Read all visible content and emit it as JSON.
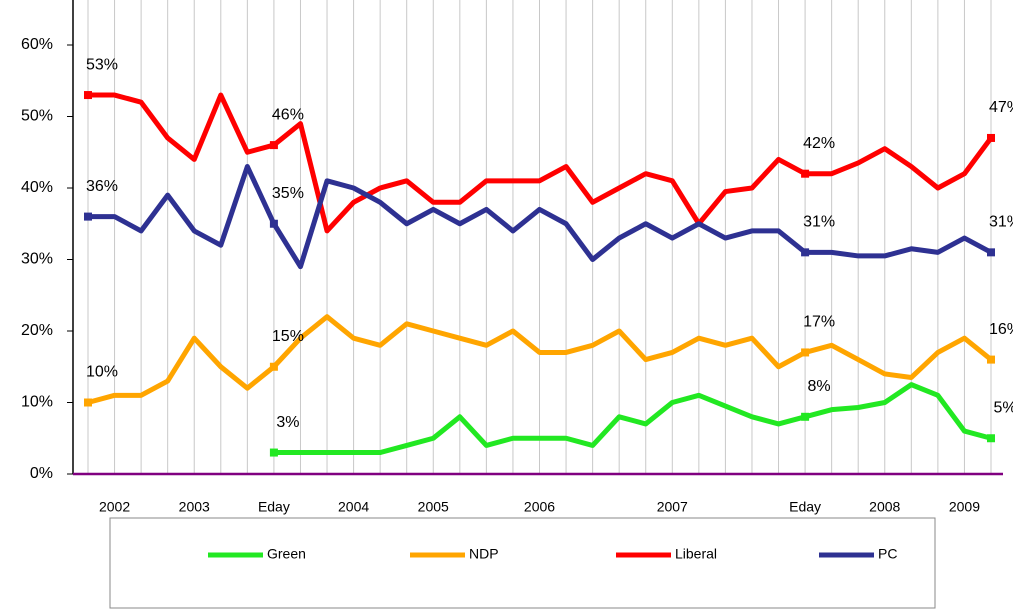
{
  "chart_data": {
    "type": "line",
    "categories": [
      null,
      "2002",
      null,
      null,
      "2003",
      null,
      null,
      "Eday",
      null,
      null,
      "2004",
      null,
      null,
      "2005",
      null,
      null,
      null,
      "2006",
      null,
      null,
      null,
      null,
      "2007",
      null,
      null,
      null,
      null,
      "Eday",
      null,
      null,
      "2008",
      null,
      null,
      "2009",
      null
    ],
    "series": [
      {
        "name": "Green",
        "color": "#22e822",
        "values": [
          null,
          null,
          null,
          null,
          null,
          null,
          null,
          3,
          3,
          3,
          3,
          3,
          4,
          5,
          8,
          4,
          5,
          5,
          5,
          4,
          8,
          7,
          10,
          11,
          9.5,
          8,
          7,
          8,
          9,
          9.3,
          10,
          12.5,
          11,
          6,
          5
        ],
        "value_labels": [
          null,
          null,
          null,
          null,
          null,
          null,
          null,
          "3%",
          null,
          null,
          null,
          null,
          null,
          null,
          null,
          null,
          null,
          null,
          null,
          null,
          null,
          null,
          null,
          null,
          null,
          null,
          null,
          "8%",
          null,
          null,
          null,
          null,
          null,
          null,
          "5%"
        ]
      },
      {
        "name": "NDP",
        "color": "#ffa500",
        "values": [
          10,
          11,
          11,
          13,
          19,
          15,
          12,
          15,
          19,
          22,
          19,
          18,
          21,
          20,
          19,
          18,
          20,
          17,
          17,
          18,
          20,
          16,
          17,
          19,
          18,
          19,
          15,
          17,
          18,
          16,
          14,
          13.5,
          17,
          19,
          16
        ],
        "value_labels": [
          "10%",
          null,
          null,
          null,
          null,
          null,
          null,
          "15%",
          null,
          null,
          null,
          null,
          null,
          null,
          null,
          null,
          null,
          null,
          null,
          null,
          null,
          null,
          null,
          null,
          null,
          null,
          null,
          "17%",
          null,
          null,
          null,
          null,
          null,
          null,
          "16%"
        ]
      },
      {
        "name": "Liberal",
        "color": "#ff0000",
        "values": [
          53,
          53,
          52,
          47,
          44,
          53,
          45,
          46,
          49,
          34,
          38,
          40,
          41,
          38,
          38,
          41,
          41,
          41,
          43,
          38,
          40,
          42,
          41,
          35,
          39.5,
          40,
          44,
          42,
          42,
          43.5,
          45.5,
          43,
          40,
          42,
          47
        ],
        "value_labels": [
          "53%",
          null,
          null,
          null,
          null,
          null,
          null,
          "46%",
          null,
          null,
          null,
          null,
          null,
          null,
          null,
          null,
          null,
          null,
          null,
          null,
          null,
          null,
          null,
          null,
          null,
          null,
          null,
          "42%",
          null,
          null,
          null,
          null,
          null,
          null,
          "47%"
        ]
      },
      {
        "name": "PC",
        "color": "#2e3192",
        "values": [
          36,
          36,
          34,
          39,
          34,
          32,
          43,
          35,
          29,
          41,
          40,
          38,
          35,
          37,
          35,
          37,
          34,
          37,
          35,
          30,
          33,
          35,
          33,
          35,
          33,
          34,
          34,
          31,
          31,
          30.5,
          30.5,
          31.5,
          31,
          33,
          31
        ],
        "value_labels": [
          "36%",
          null,
          null,
          null,
          null,
          null,
          null,
          "35%",
          null,
          null,
          null,
          null,
          null,
          null,
          null,
          null,
          null,
          null,
          null,
          null,
          null,
          null,
          null,
          null,
          null,
          null,
          null,
          "31%",
          null,
          null,
          null,
          null,
          null,
          null,
          "31%"
        ]
      }
    ],
    "ylim": [
      0,
      60
    ],
    "yticks": [
      {
        "value": 0,
        "label": "0%"
      },
      {
        "value": 10,
        "label": "10%"
      },
      {
        "value": 20,
        "label": "20%"
      },
      {
        "value": 30,
        "label": "30%"
      },
      {
        "value": 40,
        "label": "40%"
      },
      {
        "value": 50,
        "label": "50%"
      },
      {
        "value": 60,
        "label": "60%"
      }
    ],
    "grid": true,
    "legend": "bottom"
  }
}
